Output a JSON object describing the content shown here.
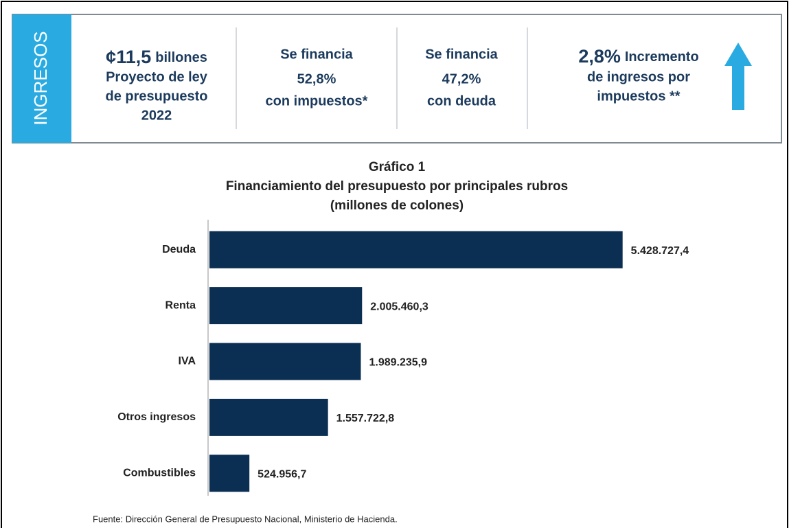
{
  "header": {
    "label": "INGRESOS",
    "items": [
      {
        "amount": "¢11,5",
        "unit": "billones",
        "lines": [
          "Proyecto de ley",
          "de presupuesto",
          "2022"
        ]
      },
      {
        "before": "Se financia",
        "amount": "52,8%",
        "after": "con impuestos*"
      },
      {
        "before": "Se financia",
        "amount": "47,2%",
        "after": "con deuda"
      },
      {
        "amount": "2,8%",
        "unit": "Incremento",
        "lines": [
          "de ingresos por",
          "impuestos **"
        ]
      }
    ]
  },
  "chart_data": {
    "type": "bar",
    "orientation": "horizontal",
    "title": "Gráfico 1",
    "subtitle": [
      "Financiamiento del presupuesto por principales rubros",
      "(millones de colones)"
    ],
    "categories": [
      "Deuda",
      "Renta",
      "IVA",
      "Otros ingresos",
      "Combustibles"
    ],
    "values": [
      5428727.4,
      2005460.3,
      1989235.9,
      1557722.8,
      524956.7
    ],
    "value_labels": [
      "5.428.727,4",
      "2.005.460,3",
      "1.989.235,9",
      "1.557.722,8",
      "524.956,7"
    ],
    "color": "#0b2f52",
    "xlim": [
      0,
      6000000
    ]
  },
  "source": "Fuente: Dirección General de Presupuesto Nacional, Ministerio de Hacienda."
}
